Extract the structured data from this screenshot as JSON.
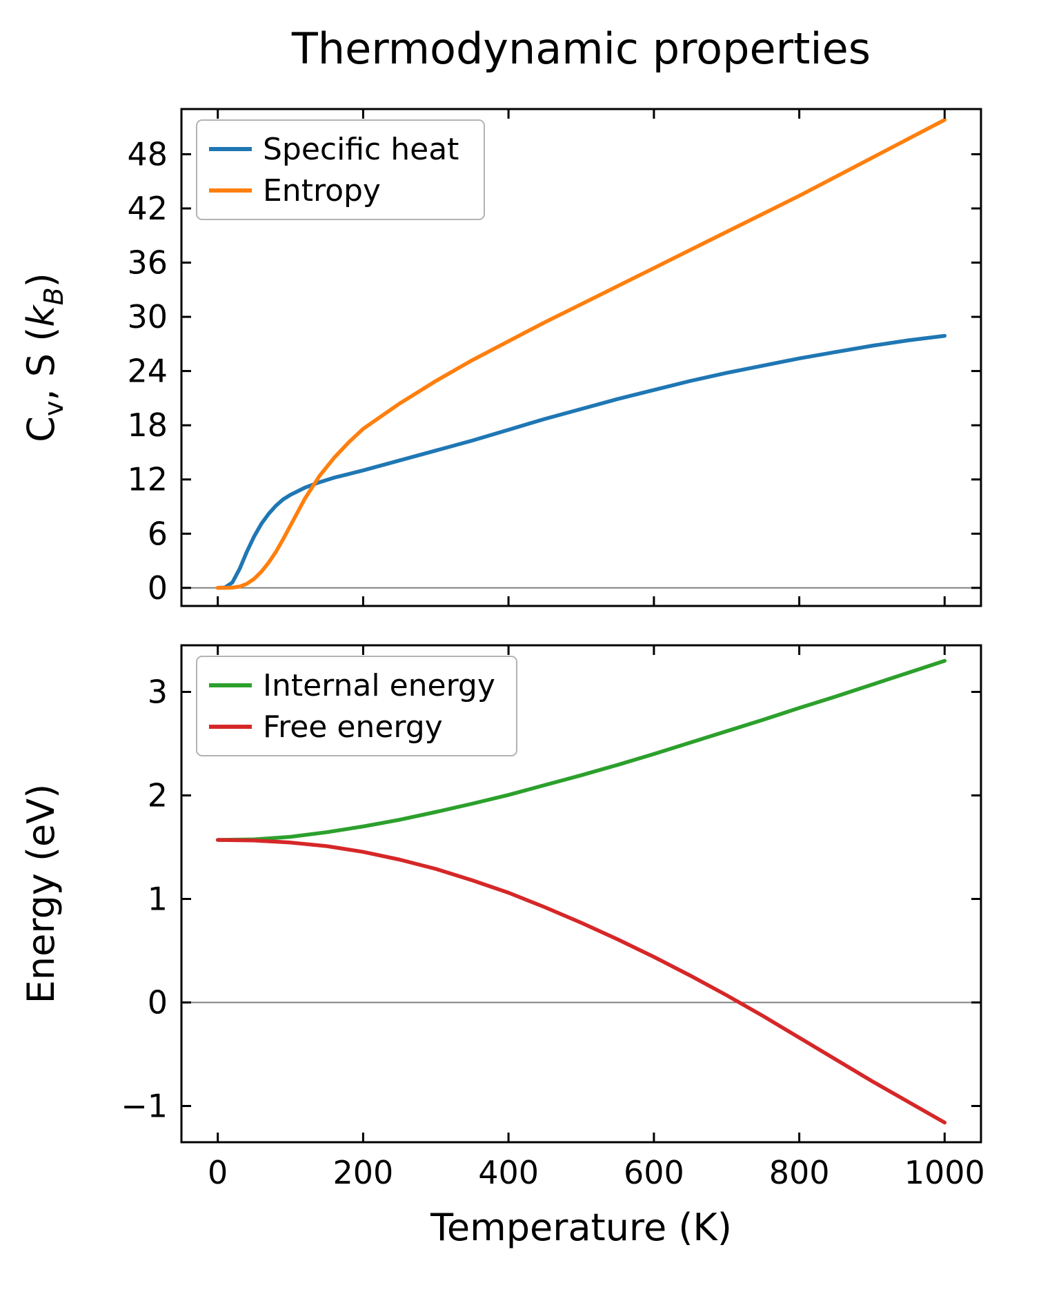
{
  "title": "Thermodynamic properties",
  "colors": {
    "background": "#ffffff",
    "text": "#000000",
    "spine": "#000000",
    "zero_line": "#808080",
    "legend_border": "#b3b3b3"
  },
  "chart_data": [
    {
      "type": "line",
      "title": "",
      "xlabel": "",
      "ylabel": "Cv, S (kB)",
      "ylabel_segments": [
        {
          "text": "C"
        },
        {
          "text": "v",
          "sub": true
        },
        {
          "text": ", S ("
        },
        {
          "text": "k",
          "italic": true
        },
        {
          "text": "B",
          "sub": true,
          "italic": true
        },
        {
          "text": ")"
        }
      ],
      "xlim": [
        -50,
        1050
      ],
      "ylim": [
        -2,
        53
      ],
      "xticks": [
        0,
        200,
        400,
        600,
        800,
        1000
      ],
      "yticks": [
        0,
        6,
        12,
        18,
        24,
        30,
        36,
        42,
        48
      ],
      "show_xtick_labels": false,
      "zero_line": true,
      "grid": false,
      "legend_position": "upper-left",
      "x": [
        0,
        10,
        20,
        30,
        40,
        50,
        60,
        70,
        80,
        90,
        100,
        120,
        140,
        160,
        180,
        200,
        250,
        300,
        350,
        400,
        450,
        500,
        550,
        600,
        650,
        700,
        750,
        800,
        850,
        900,
        950,
        1000
      ],
      "series": [
        {
          "name": "Specific heat",
          "color": "#1f77b4",
          "values": [
            0,
            0.05,
            0.6,
            2.1,
            4.0,
            5.7,
            7.1,
            8.2,
            9.1,
            9.8,
            10.3,
            11.1,
            11.7,
            12.2,
            12.6,
            13.0,
            14.1,
            15.2,
            16.3,
            17.5,
            18.7,
            19.8,
            20.9,
            21.9,
            22.9,
            23.8,
            24.6,
            25.4,
            26.1,
            26.8,
            27.4,
            27.9
          ]
        },
        {
          "name": "Entropy",
          "color": "#ff7f0e",
          "values": [
            0,
            0,
            0.03,
            0.15,
            0.45,
            1.0,
            1.8,
            2.8,
            4.0,
            5.4,
            6.9,
            9.9,
            12.4,
            14.4,
            16.1,
            17.6,
            20.4,
            22.9,
            25.2,
            27.3,
            29.4,
            31.4,
            33.4,
            35.4,
            37.4,
            39.4,
            41.4,
            43.4,
            45.5,
            47.6,
            49.7,
            51.8
          ]
        }
      ]
    },
    {
      "type": "line",
      "title": "",
      "xlabel": "Temperature (K)",
      "ylabel": "Energy (eV)",
      "ylabel_segments": [
        {
          "text": "Energy (eV)"
        }
      ],
      "xlim": [
        -50,
        1050
      ],
      "ylim": [
        -1.35,
        3.45
      ],
      "xticks": [
        0,
        200,
        400,
        600,
        800,
        1000
      ],
      "yticks": [
        -1,
        0,
        1,
        2,
        3
      ],
      "show_xtick_labels": true,
      "zero_line": true,
      "grid": false,
      "legend_position": "upper-left",
      "x": [
        0,
        50,
        100,
        150,
        200,
        250,
        300,
        350,
        400,
        450,
        500,
        550,
        600,
        650,
        700,
        750,
        800,
        850,
        900,
        950,
        1000
      ],
      "series": [
        {
          "name": "Internal energy",
          "color": "#2ca02c",
          "values": [
            1.57,
            1.575,
            1.6,
            1.645,
            1.7,
            1.765,
            1.84,
            1.92,
            2.005,
            2.1,
            2.195,
            2.295,
            2.4,
            2.51,
            2.62,
            2.73,
            2.845,
            2.955,
            3.07,
            3.185,
            3.3
          ]
        },
        {
          "name": "Free energy",
          "color": "#d62728",
          "values": [
            1.57,
            1.565,
            1.545,
            1.51,
            1.455,
            1.38,
            1.29,
            1.18,
            1.06,
            0.92,
            0.77,
            0.61,
            0.44,
            0.26,
            0.07,
            -0.13,
            -0.34,
            -0.55,
            -0.76,
            -0.96,
            -1.16
          ]
        }
      ]
    }
  ]
}
